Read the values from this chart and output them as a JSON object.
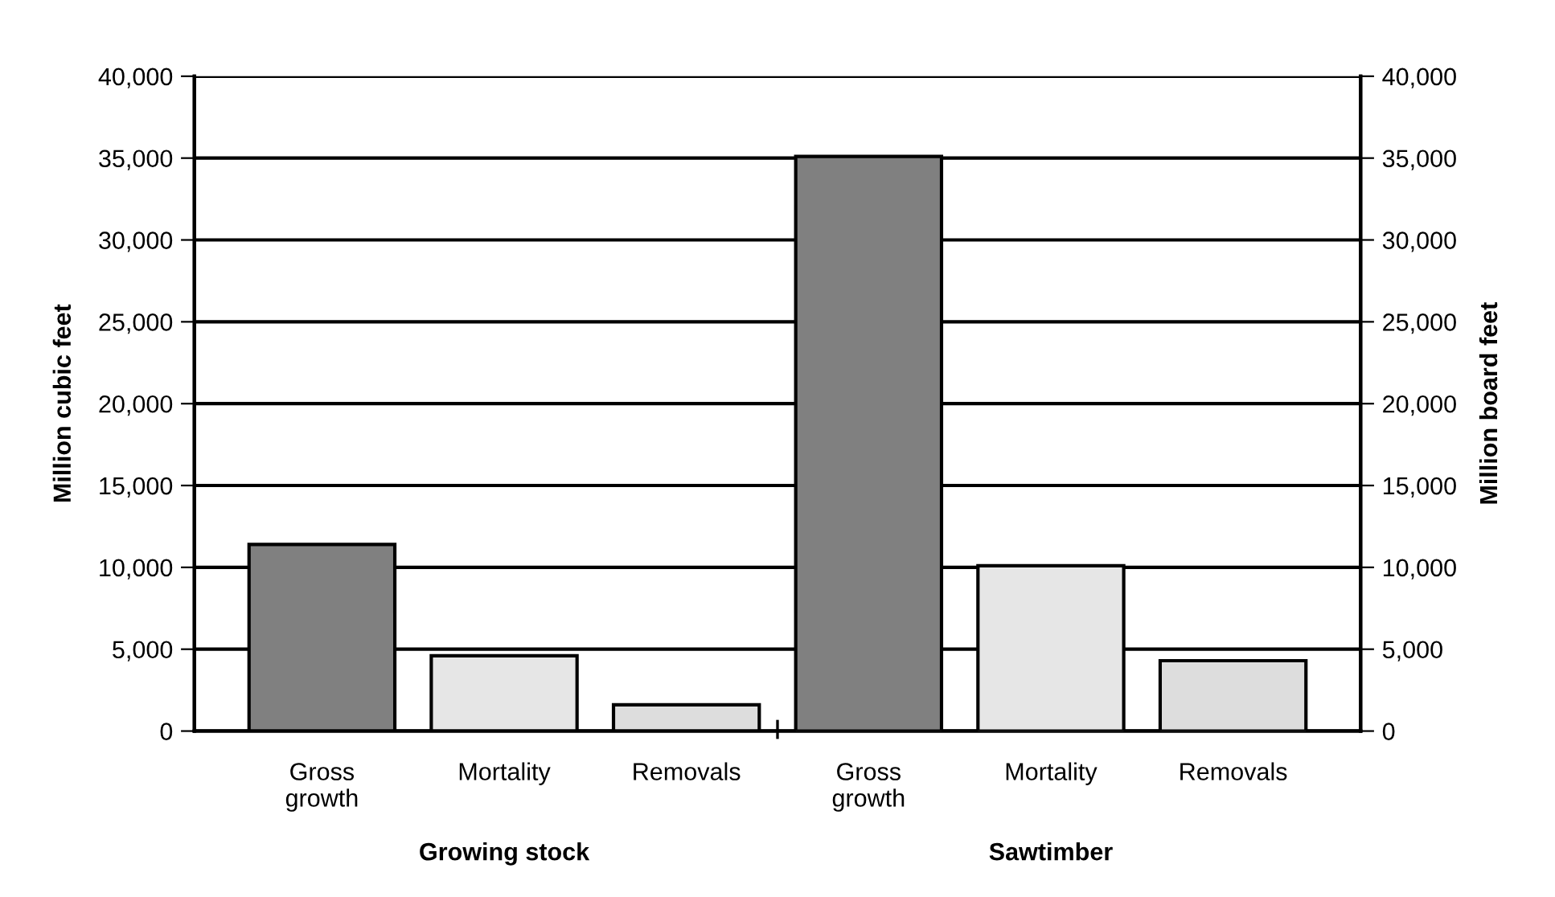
{
  "chart_data": {
    "type": "bar",
    "categories": [
      "Gross\ngrowth",
      "Mortality",
      "Removals",
      "Gross\ngrowth",
      "Mortality",
      "Removals"
    ],
    "series": [
      {
        "colors": [
          "#808080",
          "#e6e6e6",
          "#dddddd",
          null,
          null,
          null
        ],
        "values": [
          11400,
          4600,
          1600,
          null,
          null,
          null
        ]
      },
      {
        "axis": "y2",
        "colors": [
          null,
          null,
          null,
          "#808080",
          "#e6e6e6",
          "#dddddd"
        ],
        "values": [
          null,
          null,
          null,
          35100,
          10100,
          4300
        ]
      }
    ],
    "ylabel": "Million cubic feet",
    "y2label": "Million board feet",
    "ylim": [
      0,
      40000
    ],
    "yticks": [
      0,
      {
        "value": 5000,
        "label": "5,000"
      },
      {
        "value": 10000,
        "label": "10,000"
      },
      {
        "value": 15000,
        "label": "15,000"
      },
      {
        "value": 20000,
        "label": "20,000"
      },
      {
        "value": 25000,
        "label": "25,000"
      },
      {
        "value": 30000,
        "label": "30,000"
      },
      {
        "value": 35000,
        "label": "35,000"
      },
      {
        "value": 40000,
        "label": "40,000"
      }
    ],
    "y2lim": [
      0,
      40000
    ],
    "y2ticks": [
      0,
      {
        "value": 5000,
        "label": "5,000"
      },
      {
        "value": 10000,
        "label": "10,000"
      },
      {
        "value": 15000,
        "label": "15,000"
      },
      {
        "value": 20000,
        "label": "20,000"
      },
      {
        "value": 25000,
        "label": "25,000"
      },
      {
        "value": 30000,
        "label": "30,000"
      },
      {
        "value": 35000,
        "label": "35,000"
      },
      {
        "value": 40000,
        "label": "40,000"
      }
    ],
    "annotations": [
      "Growing stock",
      "Sawtimber"
    ],
    "grid": "y"
  }
}
